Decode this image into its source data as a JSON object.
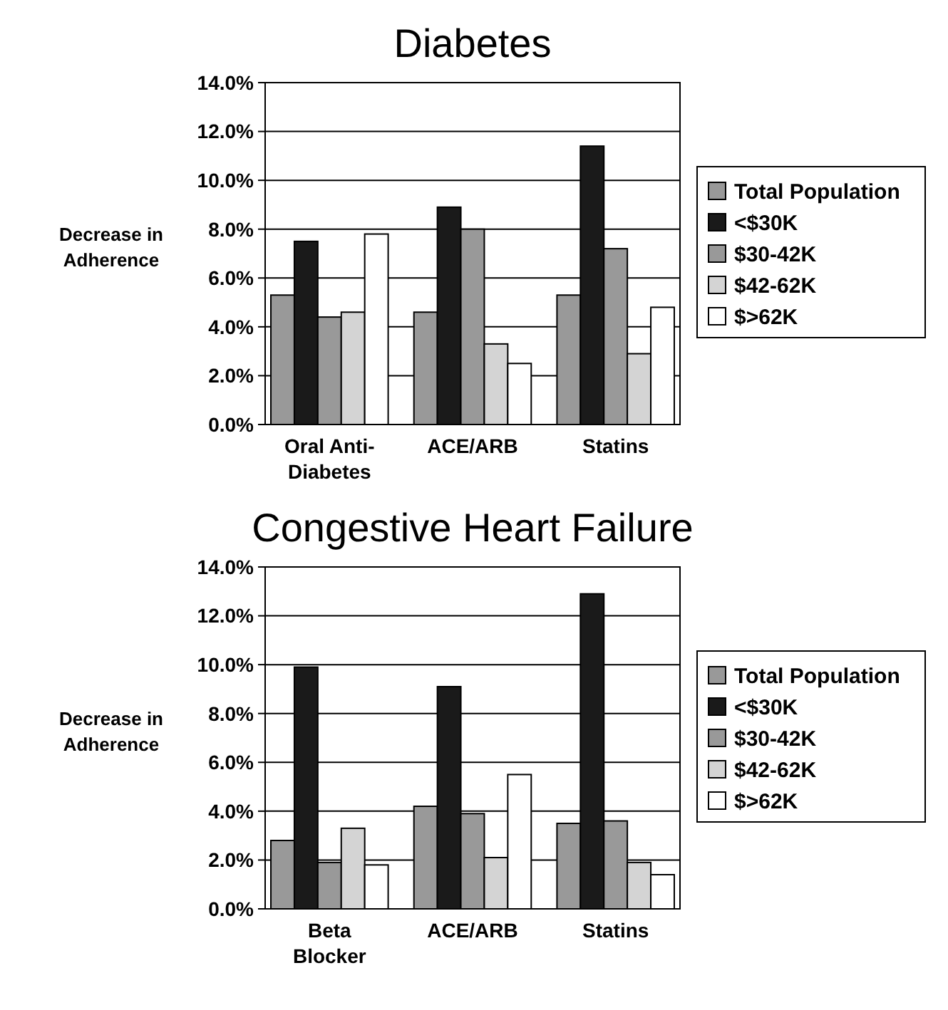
{
  "chart_data": [
    {
      "type": "bar",
      "title": "Diabetes",
      "ylabel": "Decrease in Adherence",
      "categories": [
        "Oral Anti-Diabetes",
        "ACE/ARB",
        "Statins"
      ],
      "ylim": [
        0,
        14
      ],
      "yticks": [
        {
          "value": 0,
          "label": "0.0%"
        },
        {
          "value": 2,
          "label": "2.0%"
        },
        {
          "value": 4,
          "label": "4.0%"
        },
        {
          "value": 6,
          "label": "6.0%"
        },
        {
          "value": 8,
          "label": "8.0%"
        },
        {
          "value": 10,
          "label": "10.0%"
        },
        {
          "value": 12,
          "label": "12.0%"
        },
        {
          "value": 14,
          "label": "14.0%"
        }
      ],
      "grid": "y",
      "legend": "right",
      "series": [
        {
          "name": "Total Population",
          "color": "#999999",
          "values": [
            5.3,
            4.6,
            5.3
          ]
        },
        {
          "name": "<$30K",
          "color": "#1a1a1a",
          "values": [
            7.5,
            8.9,
            11.4
          ]
        },
        {
          "name": "$30-42K",
          "color": "#999999",
          "values": [
            4.4,
            8.0,
            7.2
          ]
        },
        {
          "name": "$42-62K",
          "color": "#d4d4d4",
          "values": [
            4.6,
            3.3,
            2.9
          ]
        },
        {
          "name": "$>62K",
          "color": "#ffffff",
          "values": [
            7.8,
            2.5,
            4.8
          ]
        }
      ]
    },
    {
      "type": "bar",
      "title": "Congestive Heart Failure",
      "ylabel": "Decrease in Adherence",
      "categories": [
        "Beta Blocker",
        "ACE/ARB",
        "Statins"
      ],
      "ylim": [
        0,
        14
      ],
      "yticks": [
        {
          "value": 0,
          "label": "0.0%"
        },
        {
          "value": 2,
          "label": "2.0%"
        },
        {
          "value": 4,
          "label": "4.0%"
        },
        {
          "value": 6,
          "label": "6.0%"
        },
        {
          "value": 8,
          "label": "8.0%"
        },
        {
          "value": 10,
          "label": "10.0%"
        },
        {
          "value": 12,
          "label": "12.0%"
        },
        {
          "value": 14,
          "label": "14.0%"
        }
      ],
      "grid": "y",
      "legend": "right",
      "series": [
        {
          "name": "Total Population",
          "color": "#999999",
          "values": [
            2.8,
            4.2,
            3.5
          ]
        },
        {
          "name": "<$30K",
          "color": "#1a1a1a",
          "values": [
            9.9,
            9.1,
            12.9
          ]
        },
        {
          "name": "$30-42K",
          "color": "#999999",
          "values": [
            1.9,
            3.9,
            3.6
          ]
        },
        {
          "name": "$42-62K",
          "color": "#d4d4d4",
          "values": [
            3.3,
            2.1,
            1.9
          ]
        },
        {
          "name": "$>62K",
          "color": "#ffffff",
          "values": [
            1.8,
            5.5,
            1.4
          ]
        }
      ]
    }
  ]
}
